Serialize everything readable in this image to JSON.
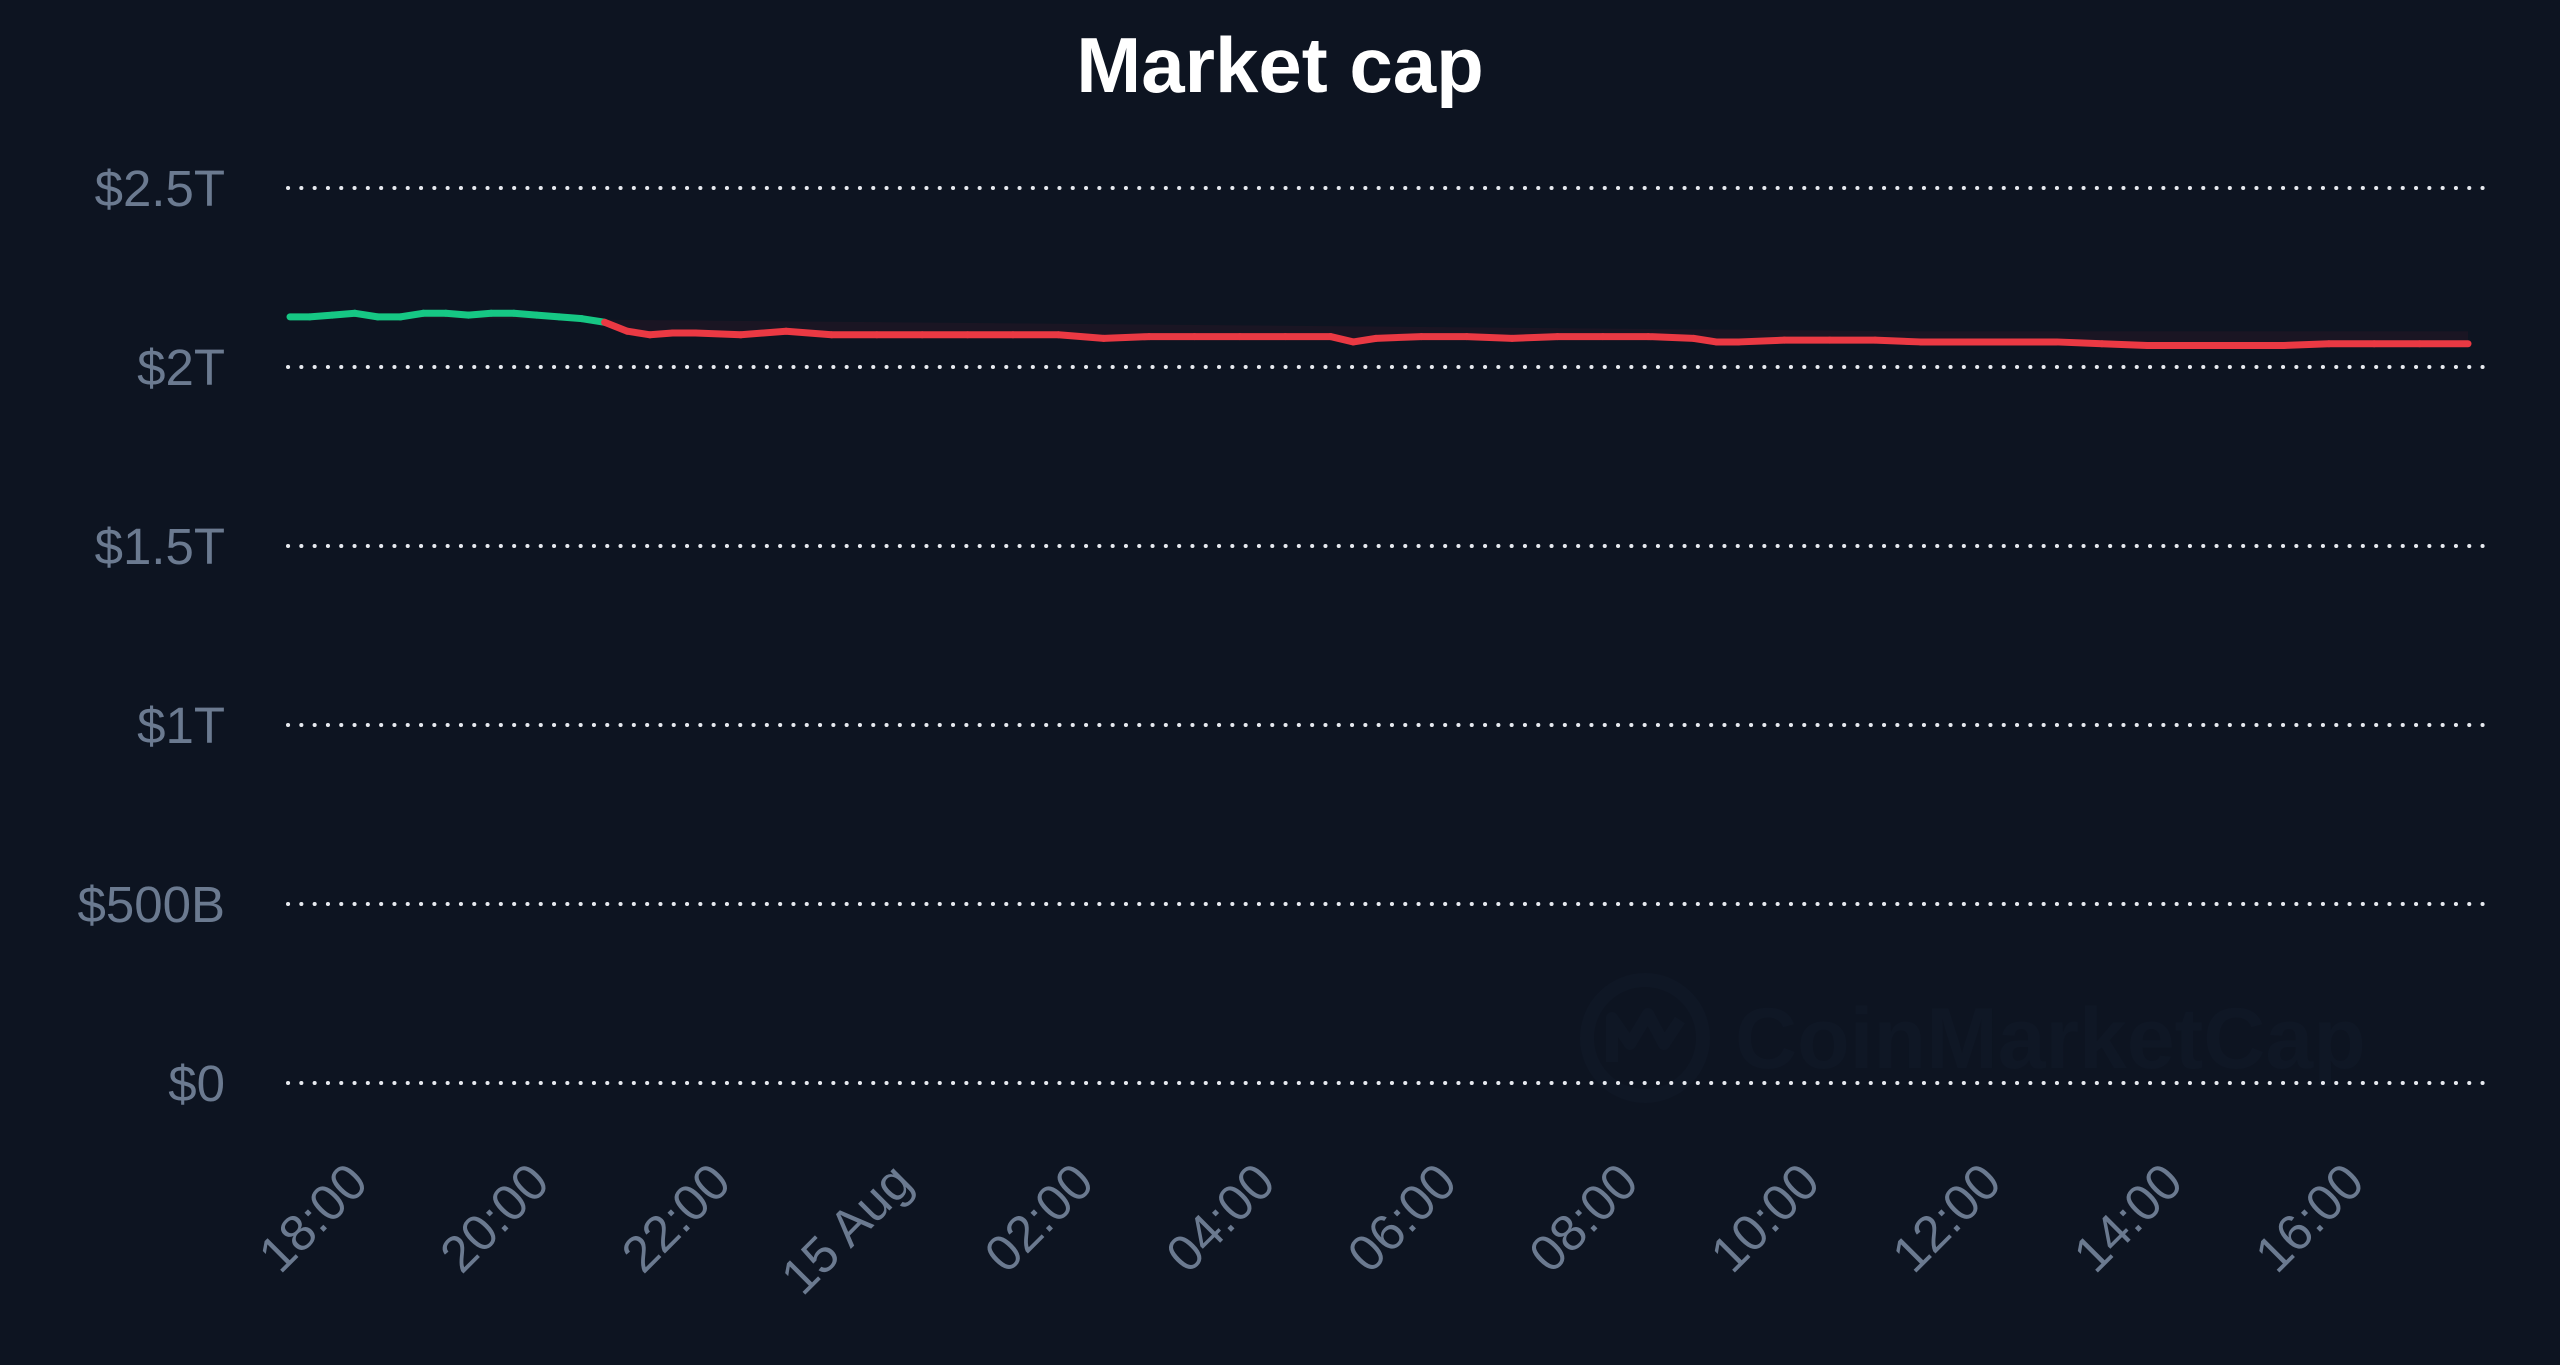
{
  "chart_data": {
    "type": "line",
    "title": "Market cap",
    "xlabel": "",
    "ylabel": "",
    "y_tick_labels": [
      "$0",
      "$500B",
      "$1T",
      "$1.5T",
      "$2T",
      "$2.5T"
    ],
    "y_tick_values": [
      0,
      0.5,
      1,
      1.5,
      2,
      2.5
    ],
    "y_unit": "trillion USD",
    "ylim": [
      0,
      2.5
    ],
    "x_tick_labels": [
      "18:00",
      "20:00",
      "22:00",
      "15 Aug",
      "02:00",
      "04:00",
      "06:00",
      "08:00",
      "10:00",
      "12:00",
      "14:00",
      "16:00"
    ],
    "x_tick_times": [
      "2024-08-14 18:00",
      "2024-08-14 20:00",
      "2024-08-14 22:00",
      "2024-08-15 00:00",
      "2024-08-15 02:00",
      "2024-08-15 04:00",
      "2024-08-15 06:00",
      "2024-08-15 08:00",
      "2024-08-15 10:00",
      "2024-08-15 12:00",
      "2024-08-15 14:00",
      "2024-08-15 16:00"
    ],
    "xlim": [
      "2024-08-14 17:32",
      "2024-08-15 17:32"
    ],
    "grid": true,
    "baseline": 2.13,
    "colors": {
      "above_baseline": "#16c784",
      "below_baseline": "#ea3943",
      "grid": "#e6e9ef",
      "tick_labels": "#6b7a90",
      "title": "#ffffff",
      "background": "#0d1421"
    },
    "series": [
      {
        "x": [
          "2024-08-14 17:32",
          "2024-08-14 17:45",
          "2024-08-14 18:00",
          "2024-08-14 18:15",
          "2024-08-14 18:30",
          "2024-08-14 18:45",
          "2024-08-14 19:00",
          "2024-08-14 19:15",
          "2024-08-14 19:30",
          "2024-08-14 19:45",
          "2024-08-14 20:00",
          "2024-08-14 20:15",
          "2024-08-14 20:30",
          "2024-08-14 20:45",
          "2024-08-14 21:00",
          "2024-08-14 21:15",
          "2024-08-14 21:30",
          "2024-08-14 21:45",
          "2024-08-14 22:00",
          "2024-08-14 22:30",
          "2024-08-14 23:00",
          "2024-08-14 23:30",
          "2024-08-15 00:00",
          "2024-08-15 00:30",
          "2024-08-15 01:00",
          "2024-08-15 01:30",
          "2024-08-15 02:00",
          "2024-08-15 02:30",
          "2024-08-15 03:00",
          "2024-08-15 03:30",
          "2024-08-15 04:00",
          "2024-08-15 04:30",
          "2024-08-15 05:00",
          "2024-08-15 05:15",
          "2024-08-15 05:30",
          "2024-08-15 06:00",
          "2024-08-15 06:30",
          "2024-08-15 07:00",
          "2024-08-15 07:30",
          "2024-08-15 08:00",
          "2024-08-15 08:30",
          "2024-08-15 09:00",
          "2024-08-15 09:15",
          "2024-08-15 09:30",
          "2024-08-15 10:00",
          "2024-08-15 10:30",
          "2024-08-15 11:00",
          "2024-08-15 11:30",
          "2024-08-15 12:00",
          "2024-08-15 12:30",
          "2024-08-15 13:00",
          "2024-08-15 13:30",
          "2024-08-15 14:00",
          "2024-08-15 14:30",
          "2024-08-15 15:00",
          "2024-08-15 15:30",
          "2024-08-15 16:00",
          "2024-08-15 16:30",
          "2024-08-15 17:00",
          "2024-08-15 17:32"
        ],
        "values": [
          2.14,
          2.14,
          2.145,
          2.15,
          2.14,
          2.14,
          2.15,
          2.15,
          2.145,
          2.15,
          2.15,
          2.145,
          2.14,
          2.135,
          2.125,
          2.1,
          2.09,
          2.095,
          2.095,
          2.09,
          2.1,
          2.09,
          2.09,
          2.09,
          2.09,
          2.09,
          2.09,
          2.08,
          2.085,
          2.085,
          2.085,
          2.085,
          2.085,
          2.07,
          2.08,
          2.085,
          2.085,
          2.08,
          2.085,
          2.085,
          2.085,
          2.08,
          2.07,
          2.07,
          2.075,
          2.075,
          2.075,
          2.07,
          2.07,
          2.07,
          2.07,
          2.065,
          2.06,
          2.06,
          2.06,
          2.06,
          2.065,
          2.065,
          2.065,
          2.065
        ]
      }
    ],
    "watermark": "CoinMarketCap"
  }
}
